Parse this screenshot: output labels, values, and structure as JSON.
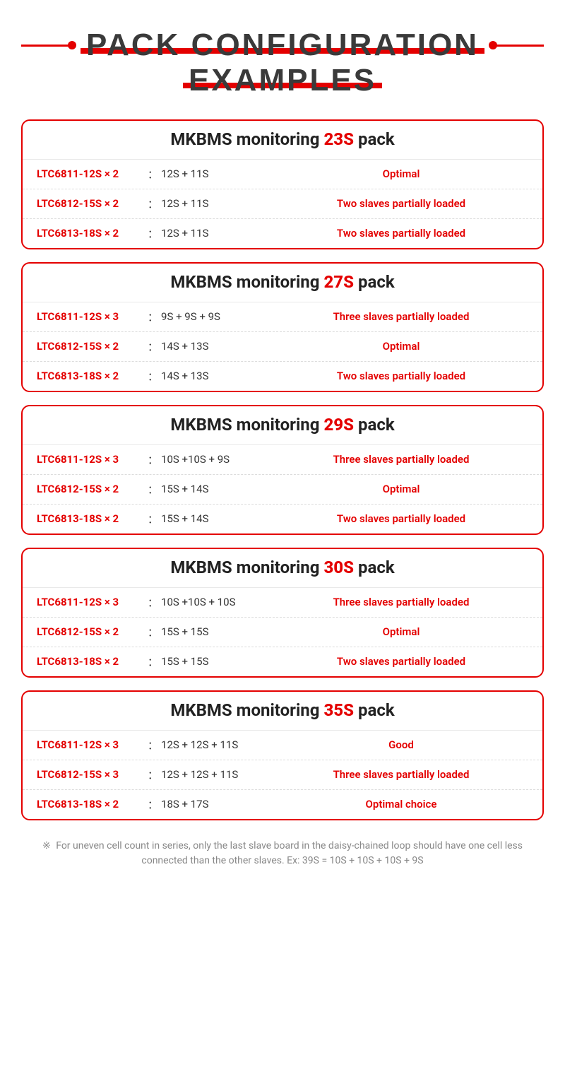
{
  "colors": {
    "accent": "#e40000",
    "text": "#333333",
    "muted": "#888888",
    "border_dash": "#dcdcdc",
    "bg": "#ffffff"
  },
  "title": {
    "line1": "PACK CONFIGURATION",
    "line2": "EXAMPLES"
  },
  "cards": [
    {
      "header": {
        "prefix": "MKBMS monitoring ",
        "highlight": "23S",
        "suffix": " pack"
      },
      "rows": [
        {
          "chip": "LTC6811-12S × 2",
          "split": "12S + 11S",
          "note": "Optimal"
        },
        {
          "chip": "LTC6812-15S × 2",
          "split": "12S + 11S",
          "note": "Two slaves partially loaded"
        },
        {
          "chip": "LTC6813-18S × 2",
          "split": "12S + 11S",
          "note": "Two slaves partially loaded"
        }
      ]
    },
    {
      "header": {
        "prefix": "MKBMS monitoring ",
        "highlight": "27S",
        "suffix": " pack"
      },
      "rows": [
        {
          "chip": "LTC6811-12S × 3",
          "split": "9S + 9S + 9S",
          "note": "Three slaves partially loaded"
        },
        {
          "chip": "LTC6812-15S × 2",
          "split": "14S + 13S",
          "note": "Optimal"
        },
        {
          "chip": "LTC6813-18S × 2",
          "split": "14S + 13S",
          "note": "Two slaves partially loaded"
        }
      ]
    },
    {
      "header": {
        "prefix": "MKBMS monitoring ",
        "highlight": "29S",
        "suffix": " pack"
      },
      "rows": [
        {
          "chip": "LTC6811-12S × 3",
          "split": "10S +10S + 9S",
          "note": "Three slaves partially loaded"
        },
        {
          "chip": "LTC6812-15S × 2",
          "split": "15S + 14S",
          "note": "Optimal"
        },
        {
          "chip": "LTC6813-18S × 2",
          "split": "15S + 14S",
          "note": "Two slaves partially loaded"
        }
      ]
    },
    {
      "header": {
        "prefix": "MKBMS monitoring ",
        "highlight": "30S",
        "suffix": " pack"
      },
      "rows": [
        {
          "chip": "LTC6811-12S × 3",
          "split": "10S +10S + 10S",
          "note": "Three slaves partially loaded"
        },
        {
          "chip": "LTC6812-15S × 2",
          "split": "15S + 15S",
          "note": "Optimal"
        },
        {
          "chip": "LTC6813-18S × 2",
          "split": "15S + 15S",
          "note": "Two slaves partially loaded"
        }
      ]
    },
    {
      "header": {
        "prefix": "MKBMS monitoring ",
        "highlight": "35S",
        "suffix": " pack"
      },
      "rows": [
        {
          "chip": "LTC6811-12S × 3",
          "split": "12S + 12S + 11S",
          "note": "Good"
        },
        {
          "chip": "LTC6812-15S × 3",
          "split": "12S + 12S + 11S",
          "note": "Three slaves partially loaded"
        },
        {
          "chip": "LTC6813-18S × 2",
          "split": "18S + 17S",
          "note": "Optimal choice"
        }
      ]
    }
  ],
  "footnote": {
    "marker": "※",
    "text": "For uneven cell count in series, only the last slave board in the daisy-chained loop should have one cell less connected than the other slaves. Ex: 39S = 10S + 10S + 10S + 9S"
  }
}
